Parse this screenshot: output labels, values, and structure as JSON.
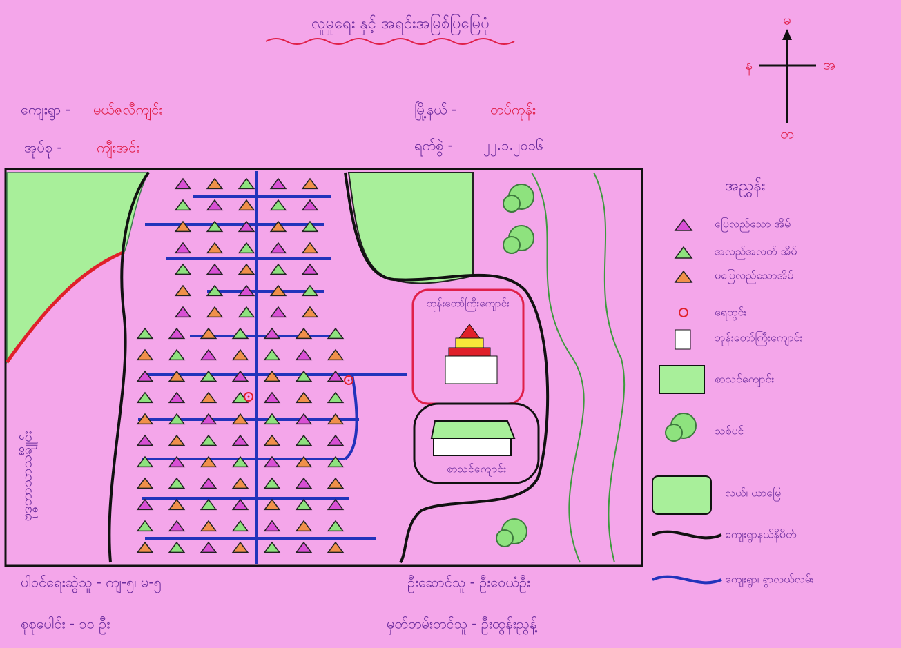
{
  "title": "လူမှုရေး နှင့် အရင်းအမြစ်ပြမြေပုံ",
  "compass": {
    "north": "မ",
    "west": "န",
    "east": "အ",
    "south": "တ"
  },
  "info": {
    "village_label": "ကျေးရွာ -",
    "village": "မယ်ဇလီကျင်း",
    "group_label": "အုပ်စု -",
    "group": "ကျီးအင်း",
    "township_label": "မြို့နယ် -",
    "township": "တပ်ကုန်း",
    "date_label": "ရက်စွဲ -",
    "date": "၂၂.၁.၂၀၁၆"
  },
  "map_labels": {
    "monastery": "ဘုန်းတော်ကြီးကျောင်း",
    "school": "စာသင်ကျောင်း",
    "cemetery": "ဗုဒ္ဓဘာသာသင်္ချိုင်း"
  },
  "legend": {
    "title": "အညွှန်း",
    "items": [
      "ပြေလည်သော အိမ်",
      "အလည်အလတ် အိမ်",
      "မပြေလည်သောအိမ်",
      "ရေတွင်း",
      "ဘုန်းတော်ကြီးကျောင်း",
      "စာသင်ကျောင်း",
      "သစ်ပင်",
      "လယ်၊ ယာမြေ",
      "ကျေးရွာနယ်နိမိတ်",
      "ကျေးရွာ၊ ရွာလယ်လမ်း"
    ]
  },
  "footer": {
    "participants": "ပါဝင်ရေးဆွဲသူ - ကျ-၅၊ မ-၅",
    "total": "စုစုပေါင်း - ၁၀ ဦး",
    "leader": "ဦးဆောင်သူ - ဦးဝေယံဦး",
    "recorder": "မှတ်တမ်းတင်သူ - ဦးထွန်းညွန့်"
  }
}
